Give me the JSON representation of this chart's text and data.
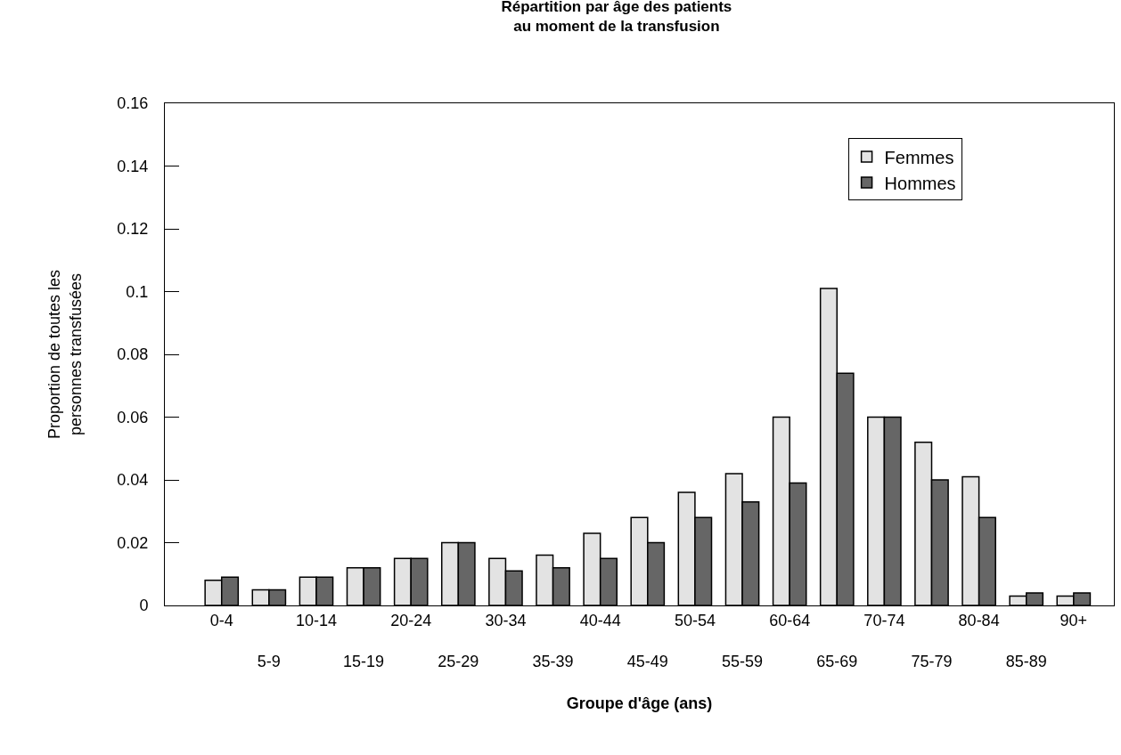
{
  "chart_data": {
    "type": "bar",
    "title": "Répartition par âge des patients\nau moment de la transfusion",
    "xlabel": "Groupe d'âge (ans)",
    "ylabel": "Proportion de toutes les\npersonnes transfusées",
    "categories": [
      "0-4",
      "5-9",
      "10-14",
      "15-19",
      "20-24",
      "25-29",
      "30-34",
      "35-39",
      "40-44",
      "45-49",
      "50-54",
      "55-59",
      "60-64",
      "65-69",
      "70-74",
      "75-79",
      "80-84",
      "85-89",
      "90+"
    ],
    "series": [
      {
        "name": "Femmes",
        "color": "#e3e3e3",
        "values": [
          0.008,
          0.005,
          0.009,
          0.012,
          0.015,
          0.02,
          0.015,
          0.016,
          0.023,
          0.028,
          0.036,
          0.042,
          0.06,
          0.101,
          0.06,
          0.052,
          0.041,
          0.003,
          0.003
        ]
      },
      {
        "name": "Hommes",
        "color": "#666666",
        "values": [
          0.009,
          0.005,
          0.009,
          0.012,
          0.015,
          0.02,
          0.011,
          0.012,
          0.015,
          0.02,
          0.028,
          0.033,
          0.039,
          0.074,
          0.06,
          0.04,
          0.028,
          0.004,
          0.004
        ]
      }
    ],
    "ylim": [
      0,
      0.16
    ],
    "yticks": [
      0,
      0.02,
      0.04,
      0.06,
      0.08,
      0.1,
      0.12,
      0.14,
      0.16
    ],
    "grid": false,
    "legend": "top right"
  }
}
